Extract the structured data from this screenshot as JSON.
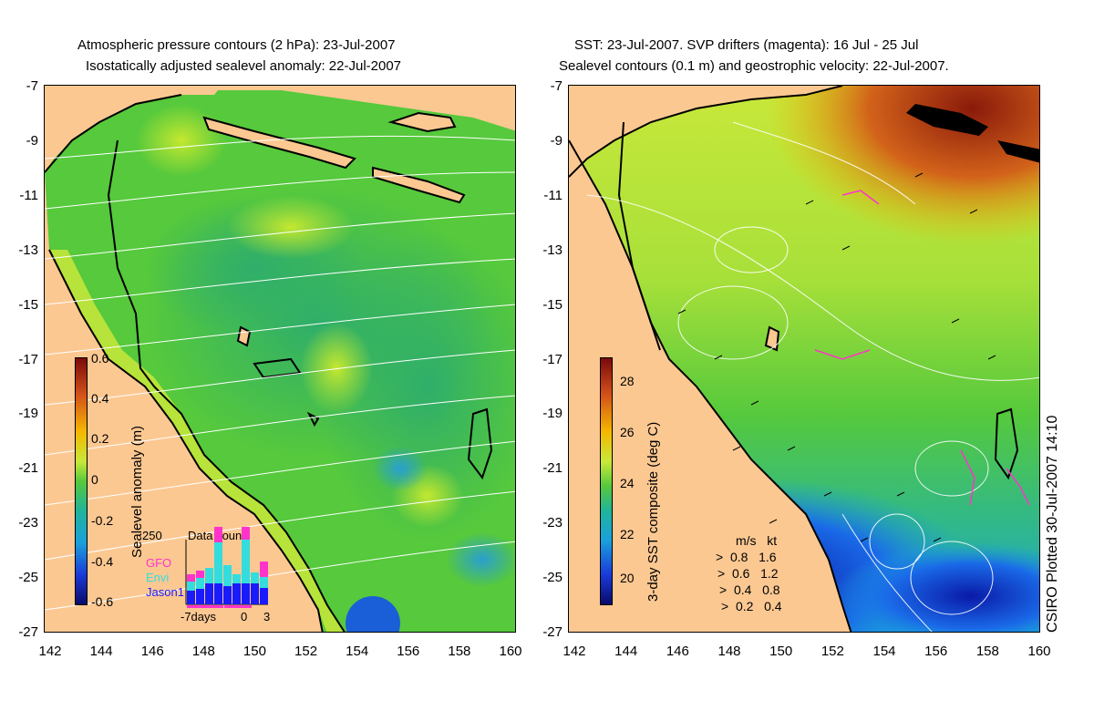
{
  "left_panel": {
    "title_line1": "Atmospheric pressure contours (2 hPa): 23-Jul-2007",
    "title_line2": "Isostatically adjusted sealevel anomaly: 22-Jul-2007",
    "colorbar_label": "Sealevel anomaly (m)",
    "colorbar_ticks": [
      "0.6",
      "0.4",
      "0.2",
      "0",
      "-0.2",
      "-0.4",
      "-0.6"
    ],
    "inset": {
      "title": "Data count",
      "y_max_label": "250",
      "x_labels": [
        "-7days",
        "0",
        "3"
      ],
      "legend": [
        {
          "label": "GFO",
          "color": "#ff33cc"
        },
        {
          "label": "Envi",
          "color": "#33dddd"
        },
        {
          "label": "Jason1",
          "color": "#1a1aff"
        }
      ]
    }
  },
  "right_panel": {
    "title_line1": "SST: 23-Jul-2007. SVP drifters (magenta): 16 Jul - 25 Jul",
    "title_line2": "Sealevel contours (0.1 m) and geostrophic velocity: 22-Jul-2007.",
    "colorbar_label": "3-day SST composite (deg C)",
    "colorbar_ticks": [
      "28",
      "26",
      "24",
      "22",
      "20"
    ],
    "velocity_legend": {
      "headers": [
        "m/s",
        "kt"
      ],
      "rows": [
        [
          "0.8",
          "1.6"
        ],
        [
          "0.6",
          "1.2"
        ],
        [
          "0.4",
          "0.8"
        ],
        [
          "0.2",
          "0.4"
        ]
      ]
    },
    "credit": "CSIRO Plotted 30-Jul-2007 14:10"
  },
  "axes": {
    "y_ticks": [
      "-7",
      "-9",
      "-11",
      "-13",
      "-15",
      "-17",
      "-19",
      "-21",
      "-23",
      "-25",
      "-27"
    ],
    "x_ticks": [
      "142",
      "144",
      "146",
      "148",
      "150",
      "152",
      "154",
      "156",
      "158",
      "160"
    ]
  },
  "colors": {
    "land": "#fcc892",
    "ocean_green": "#5ccf3a",
    "coast": "#000000"
  }
}
